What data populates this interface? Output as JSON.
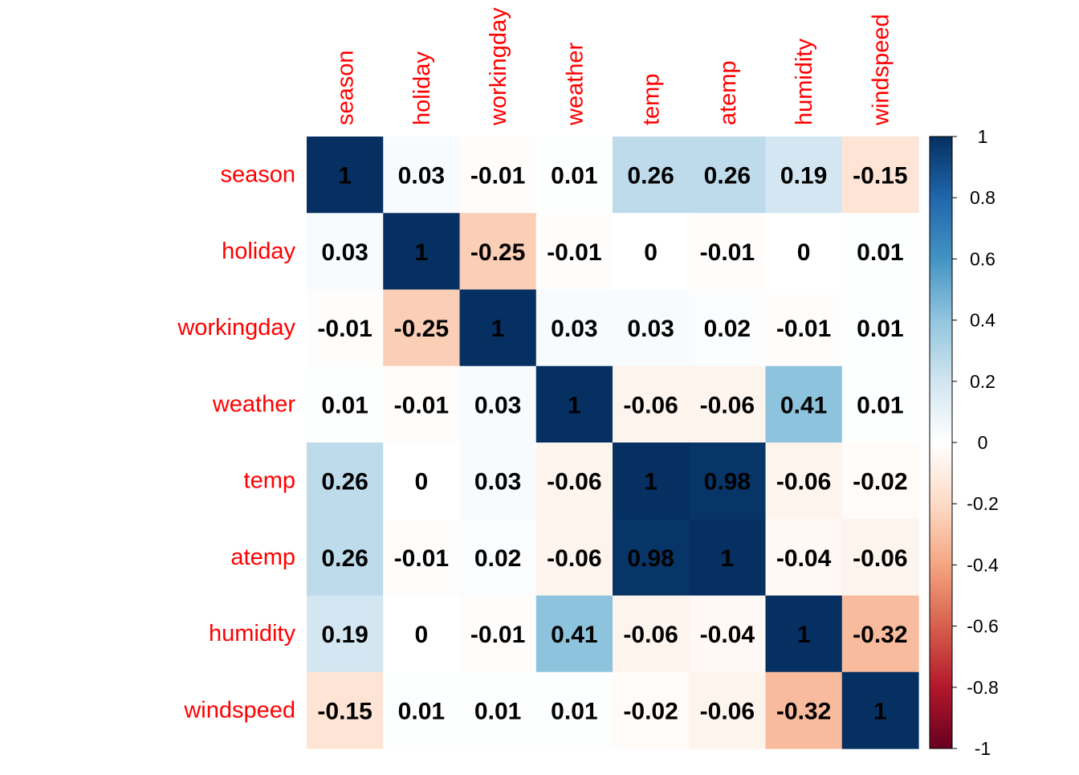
{
  "chart_data": {
    "type": "heatmap",
    "variables": [
      "season",
      "holiday",
      "workingday",
      "weather",
      "temp",
      "atemp",
      "humidity",
      "windspeed"
    ],
    "matrix": [
      [
        1,
        0.03,
        -0.01,
        0.01,
        0.26,
        0.26,
        0.19,
        -0.15
      ],
      [
        0.03,
        1,
        -0.25,
        -0.01,
        0,
        -0.01,
        0,
        0.01
      ],
      [
        -0.01,
        -0.25,
        1,
        0.03,
        0.03,
        0.02,
        -0.01,
        0.01
      ],
      [
        0.01,
        -0.01,
        0.03,
        1,
        -0.06,
        -0.06,
        0.41,
        0.01
      ],
      [
        0.26,
        0,
        0.03,
        -0.06,
        1,
        0.98,
        -0.06,
        -0.02
      ],
      [
        0.26,
        -0.01,
        0.02,
        -0.06,
        0.98,
        1,
        -0.04,
        -0.06
      ],
      [
        0.19,
        0,
        -0.01,
        0.41,
        -0.06,
        -0.04,
        1,
        -0.32
      ],
      [
        -0.15,
        0.01,
        0.01,
        0.01,
        -0.02,
        -0.06,
        -0.32,
        1
      ]
    ],
    "value_range": [
      -1,
      1
    ],
    "colorbar_ticks": [
      "1",
      "0.8",
      "0.6",
      "0.4",
      "0.2",
      "0",
      "-0.2",
      "-0.4",
      "-0.6",
      "-0.8",
      "-1"
    ],
    "colorbar_tick_values": [
      1,
      0.8,
      0.6,
      0.4,
      0.2,
      0,
      -0.2,
      -0.4,
      -0.6,
      -0.8,
      -1
    ],
    "colors": {
      "variable_label": "#ff0000",
      "cell_text": "#000000",
      "colorbar_tick_text": "#000000",
      "palette": [
        "#67001F",
        "#B2182B",
        "#D6604D",
        "#F4A582",
        "#FDDBC7",
        "#FFFFFF",
        "#D1E5F0",
        "#92C5DE",
        "#4393C3",
        "#2166AC",
        "#053061"
      ]
    },
    "legend_placement": "right",
    "grid": false
  }
}
